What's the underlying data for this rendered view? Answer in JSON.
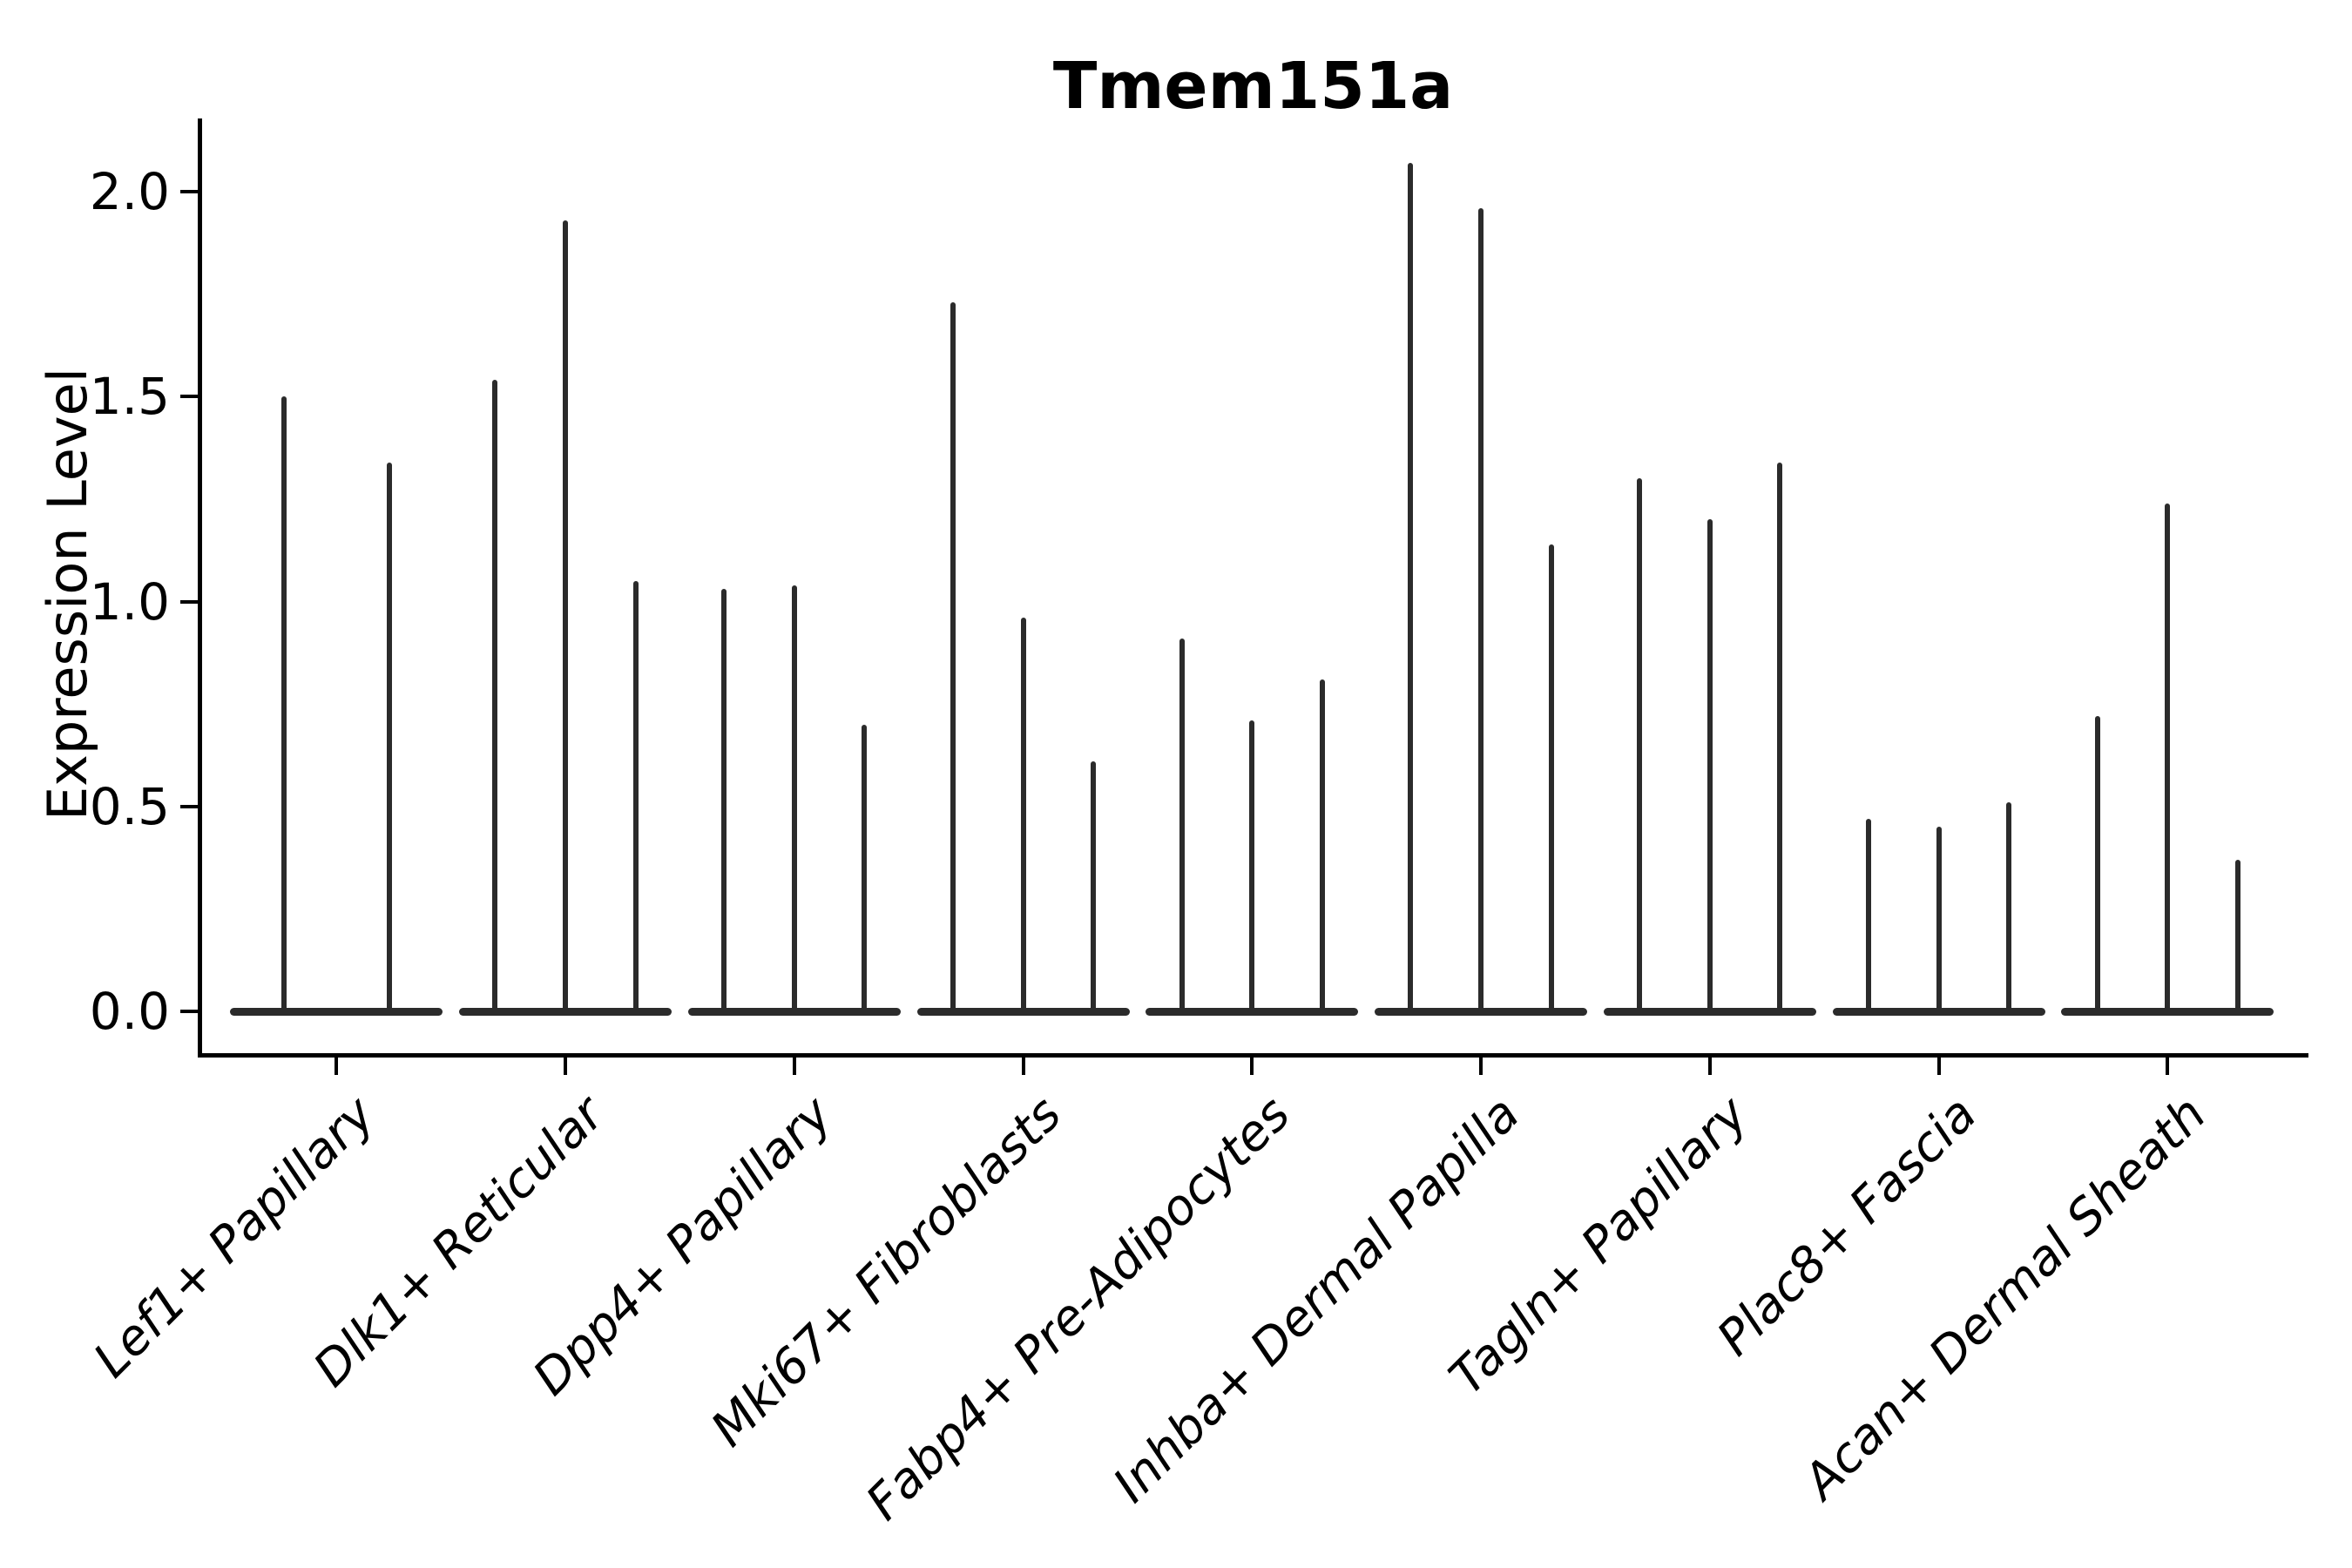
{
  "chart_data": {
    "type": "violin",
    "title": "Tmem151a",
    "xlabel": "",
    "ylabel": "Expression Level",
    "legend": "none",
    "grid": false,
    "background": "#ffffff",
    "ink_color": "#2b2b2b",
    "axis_color": "#000000",
    "ylim": [
      -0.1,
      2.18
    ],
    "yticks": [
      {
        "label": "0.0",
        "value": 0.0
      },
      {
        "label": "0.5",
        "value": 0.5
      },
      {
        "label": "1.0",
        "value": 1.0
      },
      {
        "label": "1.5",
        "value": 1.5
      },
      {
        "label": "2.0",
        "value": 2.0
      }
    ],
    "categories": [
      "Lef1+ Papillary",
      "Dlk1+ Reticular",
      "Dpp4+ Papillary",
      "Mki67+ Fibroblasts",
      "Fabp4+ Pre-Adipocytes",
      "Inhba+ Dermal Papilla",
      "Tagln+ Papillary",
      "Plac8+ Fascia",
      "Acan+ Dermal Sheath"
    ],
    "groups": [
      {
        "category": "Lef1+ Papillary",
        "violin_maxima": [
          1.5,
          1.34
        ]
      },
      {
        "category": "Dlk1+ Reticular",
        "violin_maxima": [
          1.54,
          1.93,
          1.05
        ]
      },
      {
        "category": "Dpp4+ Papillary",
        "violin_maxima": [
          1.03,
          1.04,
          0.7
        ]
      },
      {
        "category": "Mki67+ Fibroblasts",
        "violin_maxima": [
          1.73,
          0.96,
          0.61
        ]
      },
      {
        "category": "Fabp4+ Pre-Adipocytes",
        "violin_maxima": [
          0.91,
          0.71,
          0.81
        ]
      },
      {
        "category": "Inhba+ Dermal Papilla",
        "violin_maxima": [
          2.07,
          1.96,
          1.14
        ]
      },
      {
        "category": "Tagln+ Papillary",
        "violin_maxima": [
          1.3,
          1.2,
          1.34
        ]
      },
      {
        "category": "Plac8+ Fascia",
        "violin_maxima": [
          0.47,
          0.45,
          0.51
        ]
      },
      {
        "category": "Acan+ Dermal Sheath",
        "violin_maxima": [
          0.72,
          1.24,
          0.37
        ]
      }
    ]
  }
}
